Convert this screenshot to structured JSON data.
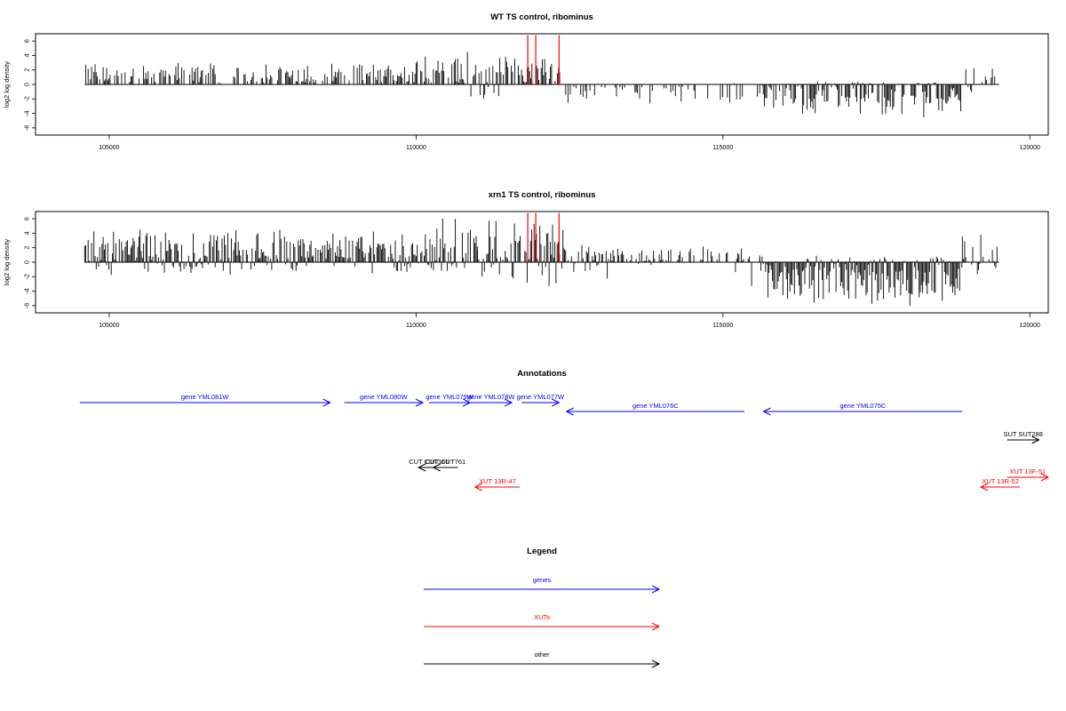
{
  "panels": [
    {
      "title": "WT TS control, ribominus",
      "ylabel": "log2 log density",
      "xticks": [
        "105000",
        "110000",
        "115000",
        "120000"
      ],
      "yticks": [
        "6",
        "4",
        "2",
        "0",
        "-2",
        "-4",
        "-6"
      ]
    },
    {
      "title": "xrn1 TS control, ribominus",
      "ylabel": "log2 log density",
      "xticks": [
        "105000",
        "110000",
        "115000",
        "120000"
      ],
      "yticks": [
        "6",
        "4",
        "2",
        "0",
        "-2",
        "-4",
        "-6"
      ]
    }
  ],
  "annotations_title": "Annotations",
  "legend": {
    "title": "Legend",
    "items": [
      {
        "label": "genes",
        "color": "#0000ff"
      },
      {
        "label": "XUTs",
        "color": "#ff0000"
      },
      {
        "label": "other",
        "color": "#000000"
      }
    ]
  },
  "colors": {
    "genes": "#0000ff",
    "XUTs": "#ff0000",
    "other": "#000000",
    "highlight": "#ff0000"
  },
  "chart_data": [
    {
      "type": "bar",
      "title": "WT TS control, ribominus",
      "xlabel": "",
      "ylabel": "log2 log density",
      "xlim": [
        103800,
        120300
      ],
      "ylim": [
        -7,
        7
      ],
      "grid": false,
      "baseline_range": [
        104600,
        119500
      ],
      "segments": [
        {
          "x_start": 104600,
          "x_end": 110000,
          "max": 3.2,
          "min": 0,
          "density": 0.55
        },
        {
          "x_start": 110000,
          "x_end": 110800,
          "max": 5.5,
          "min": 0,
          "density": 0.7
        },
        {
          "x_start": 110800,
          "x_end": 111700,
          "max": 5.0,
          "min": -2.5,
          "density": 0.6
        },
        {
          "x_start": 111700,
          "x_end": 112400,
          "max": 4.5,
          "min": 0,
          "density": 0.7
        },
        {
          "x_start": 112400,
          "x_end": 115600,
          "max": 1.0,
          "min": -3.0,
          "density": 0.3
        },
        {
          "x_start": 115600,
          "x_end": 118900,
          "max": 0.5,
          "min": -4.8,
          "density": 0.75
        },
        {
          "x_start": 118900,
          "x_end": 119500,
          "max": 3.2,
          "min": -1.5,
          "density": 0.3
        }
      ],
      "highlight_positions": [
        111820,
        111950,
        112330
      ],
      "highlight_value": 6.8
    },
    {
      "type": "bar",
      "title": "xrn1 TS control, ribominus",
      "xlabel": "",
      "ylabel": "log2 log density",
      "xlim": [
        103800,
        120300
      ],
      "ylim": [
        -7,
        7
      ],
      "grid": false,
      "baseline_range": [
        104600,
        119500
      ],
      "segments": [
        {
          "x_start": 104600,
          "x_end": 110000,
          "max": 4.8,
          "min": -2.0,
          "density": 0.9
        },
        {
          "x_start": 110000,
          "x_end": 111000,
          "max": 6.8,
          "min": -1.5,
          "density": 0.8
        },
        {
          "x_start": 111000,
          "x_end": 112400,
          "max": 6.0,
          "min": -3.6,
          "density": 0.85
        },
        {
          "x_start": 112400,
          "x_end": 115600,
          "max": 2.8,
          "min": -4.0,
          "density": 0.6
        },
        {
          "x_start": 115600,
          "x_end": 118900,
          "max": 1.0,
          "min": -6.5,
          "density": 0.95
        },
        {
          "x_start": 118900,
          "x_end": 119500,
          "max": 4.8,
          "min": -2.0,
          "density": 0.5
        }
      ],
      "highlight_positions": [
        111820,
        111950,
        112330
      ],
      "highlight_value": 6.8
    },
    {
      "type": "table",
      "title": "Annotations",
      "features": [
        {
          "label": "gene YML081W",
          "class": "genes",
          "strand": "+",
          "start": 104520,
          "end": 108600,
          "row": 1
        },
        {
          "label": "gene YML080W",
          "class": "genes",
          "strand": "+",
          "start": 108830,
          "end": 110110,
          "row": 1
        },
        {
          "label": "gene YML079W",
          "class": "genes",
          "strand": "+",
          "start": 110210,
          "end": 110880,
          "row": 1
        },
        {
          "label": "gene YML078W",
          "class": "genes",
          "strand": "+",
          "start": 110880,
          "end": 111560,
          "row": 1
        },
        {
          "label": "gene YML077W",
          "class": "genes",
          "strand": "+",
          "start": 111720,
          "end": 112330,
          "row": 1
        },
        {
          "label": "gene YML076C",
          "class": "genes",
          "strand": "-",
          "start": 112450,
          "end": 115350,
          "row": 2
        },
        {
          "label": "gene YML075C",
          "class": "genes",
          "strand": "-",
          "start": 115660,
          "end": 118900,
          "row": 2
        },
        {
          "label": "SUT SUT288",
          "class": "other",
          "strand": "+",
          "start": 119630,
          "end": 120150,
          "row": 3
        },
        {
          "label": "CUT CUT160",
          "class": "other",
          "strand": "-",
          "start": 110040,
          "end": 110380,
          "row": 4
        },
        {
          "label": "CUT CUT761",
          "class": "other",
          "strand": "-",
          "start": 110280,
          "end": 110680,
          "row": 4
        },
        {
          "label": "XUT 13F-51",
          "class": "XUTs",
          "strand": "+",
          "start": 119630,
          "end": 120300,
          "row": 5
        },
        {
          "label": "XUT 13R-47",
          "class": "XUTs",
          "strand": "-",
          "start": 110960,
          "end": 111690,
          "row": 6
        },
        {
          "label": "XUT 13R-52",
          "class": "XUTs",
          "strand": "-",
          "start": 119200,
          "end": 119840,
          "row": 6
        }
      ]
    }
  ]
}
